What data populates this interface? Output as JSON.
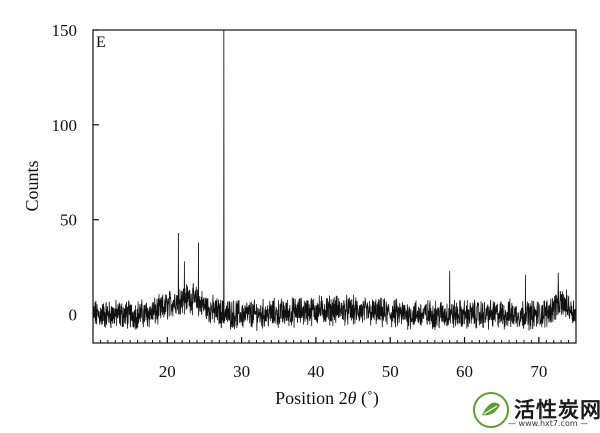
{
  "chart_data": {
    "type": "line",
    "panel_label": "E",
    "xlabel_prefix": "Position 2",
    "xlabel_theta": "θ",
    "xlabel_suffix": " (˚)",
    "ylabel": "Counts",
    "xlim": [
      10,
      75
    ],
    "ylim": [
      -15,
      150
    ],
    "xticks": [
      20,
      30,
      40,
      50,
      60,
      70
    ],
    "yticks": [
      0,
      50,
      100,
      150
    ],
    "grid": false,
    "series": [
      {
        "description_peaks": "noisy baseline near 0 with peaks",
        "peaks": [
          {
            "x": 21.5,
            "y": 43
          },
          {
            "x": 22.3,
            "y": 28
          },
          {
            "x": 24.2,
            "y": 38
          },
          {
            "x": 27.6,
            "y": 150
          },
          {
            "x": 58.0,
            "y": 23
          },
          {
            "x": 68.2,
            "y": 21
          },
          {
            "x": 72.6,
            "y": 22
          }
        ],
        "baseline_amplitude": 6
      }
    ]
  },
  "watermark": {
    "text": "活性炭网",
    "url": "— www.hxt7.com —"
  }
}
